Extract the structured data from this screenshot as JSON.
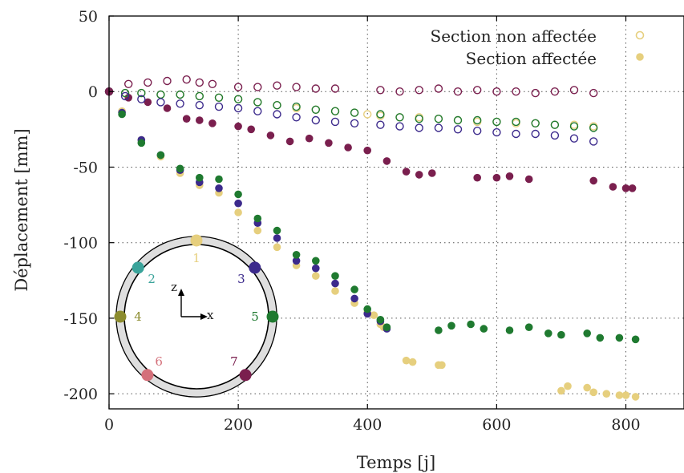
{
  "chart_data": {
    "type": "scatter",
    "xlabel": "Temps [j]",
    "ylabel": "Déplacement [mm]",
    "xlim": [
      0,
      890
    ],
    "ylim": [
      -210,
      50
    ],
    "x_ticks": [
      0,
      200,
      400,
      600,
      800
    ],
    "y_ticks": [
      50,
      0,
      -50,
      -100,
      -150,
      -200
    ],
    "grid": true,
    "legend": {
      "position": "top-right",
      "entries": [
        {
          "label": "Section non affectée",
          "marker": "open-circle",
          "color": "#e6cf7e"
        },
        {
          "label": "Section affectée",
          "marker": "filled-circle",
          "color": "#e6cf7e"
        }
      ]
    },
    "series": [
      {
        "point": "1",
        "style": "filled",
        "color": "#e6cf7e",
        "x": [
          0,
          20,
          50,
          80,
          110,
          140,
          170,
          200,
          230,
          260,
          290,
          320,
          350,
          380,
          400,
          410,
          420,
          425,
          460,
          470,
          510,
          515,
          700,
          710,
          740,
          750,
          770,
          790,
          800,
          815
        ],
        "y": [
          0,
          -13,
          -32,
          -43,
          -54,
          -62,
          -67,
          -80,
          -92,
          -103,
          -115,
          -122,
          -132,
          -140,
          -146,
          -148,
          -154,
          -156,
          -178,
          -179,
          -181,
          -181,
          -198,
          -195,
          -196,
          -199,
          -200,
          -201,
          -201,
          -202
        ]
      },
      {
        "point": "3",
        "style": "filled",
        "color": "#3c2a8c",
        "x": [
          0,
          20,
          50,
          80,
          110,
          140,
          170,
          200,
          230,
          260,
          290,
          320,
          350,
          380,
          400,
          420,
          430
        ],
        "y": [
          0,
          -14,
          -32,
          -42,
          -52,
          -60,
          -64,
          -74,
          -87,
          -97,
          -112,
          -117,
          -127,
          -137,
          -147,
          -152,
          -157
        ]
      },
      {
        "point": "5",
        "style": "filled",
        "color": "#1f7a30",
        "x": [
          0,
          20,
          50,
          80,
          110,
          140,
          170,
          200,
          230,
          260,
          290,
          320,
          350,
          380,
          400,
          420,
          430,
          510,
          530,
          560,
          580,
          620,
          650,
          680,
          700,
          740,
          760,
          790,
          815
        ],
        "y": [
          0,
          -15,
          -34,
          -42,
          -51,
          -57,
          -58,
          -68,
          -84,
          -92,
          -108,
          -112,
          -122,
          -131,
          -144,
          -151,
          -156,
          -158,
          -155,
          -154,
          -157,
          -158,
          -156,
          -160,
          -161,
          -160,
          -163,
          -163,
          -164
        ]
      },
      {
        "point": "7",
        "style": "filled",
        "color": "#7a1f4e",
        "x": [
          0,
          30,
          60,
          90,
          120,
          140,
          160,
          200,
          220,
          250,
          280,
          310,
          340,
          370,
          400,
          430,
          460,
          480,
          500,
          570,
          600,
          620,
          650,
          750,
          780,
          800,
          810
        ],
        "y": [
          0,
          -4,
          -7,
          -11,
          -18,
          -19,
          -21,
          -23,
          -25,
          -29,
          -33,
          -31,
          -34,
          -37,
          -39,
          -46,
          -53,
          -55,
          -54,
          -57,
          -57,
          -56,
          -58,
          -59,
          -63,
          -64,
          -64
        ]
      },
      {
        "point": "1",
        "style": "open",
        "color": "#e6cf7e",
        "x": [
          0,
          25,
          50,
          80,
          110,
          140,
          170,
          200,
          230,
          260,
          290,
          320,
          350,
          380,
          400,
          420,
          450,
          480,
          510,
          540,
          570,
          600,
          630,
          660,
          690,
          720,
          750
        ],
        "y": [
          0,
          -1,
          -1,
          -2,
          -2,
          -3,
          -4,
          -5,
          -7,
          -9,
          -11,
          -12,
          -13,
          -14,
          -15,
          -16,
          -17,
          -17,
          -18,
          -19,
          -20,
          -20,
          -21,
          -21,
          -22,
          -22,
          -23
        ]
      },
      {
        "point": "5",
        "style": "open",
        "color": "#1f7a30",
        "x": [
          0,
          25,
          50,
          80,
          110,
          140,
          170,
          200,
          230,
          260,
          290,
          320,
          350,
          380,
          420,
          450,
          480,
          510,
          540,
          570,
          600,
          630,
          660,
          690,
          720,
          750
        ],
        "y": [
          0,
          -1,
          -1,
          -2,
          -2,
          -3,
          -4,
          -5,
          -7,
          -9,
          -10,
          -12,
          -13,
          -14,
          -15,
          -17,
          -18,
          -18,
          -19,
          -19,
          -20,
          -20,
          -21,
          -22,
          -23,
          -24
        ]
      },
      {
        "point": "3",
        "style": "open",
        "color": "#3c2a8c",
        "x": [
          0,
          25,
          50,
          80,
          110,
          140,
          170,
          200,
          230,
          260,
          290,
          320,
          350,
          380,
          420,
          450,
          480,
          510,
          540,
          570,
          600,
          630,
          660,
          690,
          720,
          750
        ],
        "y": [
          0,
          -3,
          -5,
          -7,
          -8,
          -9,
          -10,
          -11,
          -13,
          -15,
          -17,
          -19,
          -20,
          -21,
          -22,
          -23,
          -24,
          -24,
          -25,
          -26,
          -27,
          -28,
          -28,
          -29,
          -31,
          -33
        ]
      },
      {
        "point": "7",
        "style": "open",
        "color": "#7a1f4e",
        "x": [
          0,
          30,
          60,
          90,
          120,
          140,
          160,
          200,
          230,
          260,
          290,
          320,
          350,
          420,
          450,
          480,
          510,
          540,
          570,
          600,
          630,
          660,
          690,
          720,
          750
        ],
        "y": [
          0,
          5,
          6,
          7,
          8,
          6,
          5,
          3,
          3,
          4,
          3,
          2,
          2,
          1,
          0,
          1,
          2,
          0,
          1,
          0,
          0,
          -1,
          0,
          1,
          -1
        ]
      }
    ],
    "inset": {
      "points": [
        {
          "label": "1",
          "color": "#e6cf7e"
        },
        {
          "label": "2",
          "color": "#3aa39a"
        },
        {
          "label": "3",
          "color": "#3c2a8c"
        },
        {
          "label": "4",
          "color": "#8c8c2e"
        },
        {
          "label": "5",
          "color": "#1f7a30"
        },
        {
          "label": "6",
          "color": "#d4707a"
        },
        {
          "label": "7",
          "color": "#7a1f4e"
        }
      ],
      "axis_z": "z",
      "axis_x": "x"
    }
  }
}
